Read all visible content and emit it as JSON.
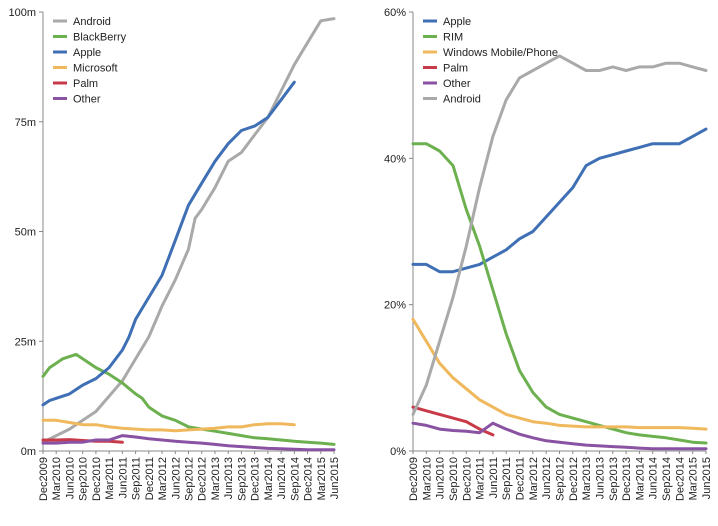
{
  "chart_data": [
    {
      "type": "line",
      "ylim": [
        0,
        100
      ],
      "yticks": [
        "0m",
        "25m",
        "50m",
        "75m",
        "100m"
      ],
      "ytick_values": [
        0,
        25,
        50,
        75,
        100
      ],
      "x_tick_labels": [
        "Dec2009",
        "Mar2010",
        "Jun2010",
        "Sep2010",
        "Dec2010",
        "Mar2011",
        "Jun2011",
        "Sep2011",
        "Dec2011",
        "Mar2012",
        "Jun2012",
        "Sep2012",
        "Dec2012",
        "Mar2013",
        "Jun2013",
        "Sep2013",
        "Dec2013",
        "Mar2014",
        "Jun2014",
        "Sep2014",
        "Dec2014",
        "Mar2015",
        "Jun2015"
      ],
      "legend_position": "top-left",
      "series": [
        {
          "name": "Android",
          "color": "#a9a9a9",
          "points": [
            [
              0,
              2
            ],
            [
              2,
              5
            ],
            [
              4,
              9
            ],
            [
              6,
              16
            ],
            [
              8,
              26
            ],
            [
              9,
              33
            ],
            [
              10,
              39
            ],
            [
              11,
              46
            ],
            [
              11.5,
              53
            ],
            [
              12,
              55
            ],
            [
              13,
              60
            ],
            [
              14,
              66
            ],
            [
              15,
              68
            ],
            [
              16,
              72
            ],
            [
              17,
              76
            ],
            [
              18,
              82
            ],
            [
              19,
              88
            ],
            [
              20,
              93
            ],
            [
              21,
              98
            ],
            [
              22,
              98.5
            ]
          ]
        },
        {
          "name": "BlackBerry",
          "color": "#6cb04f",
          "points": [
            [
              0,
              17
            ],
            [
              0.5,
              19
            ],
            [
              1,
              20
            ],
            [
              1.5,
              21
            ],
            [
              2,
              21.5
            ],
            [
              2.5,
              22
            ],
            [
              3,
              21
            ],
            [
              4,
              19
            ],
            [
              5,
              17.5
            ],
            [
              6,
              15.5
            ],
            [
              7,
              13
            ],
            [
              7.5,
              12
            ],
            [
              8,
              10
            ],
            [
              9,
              8
            ],
            [
              10,
              7
            ],
            [
              11,
              5.5
            ],
            [
              12,
              5
            ],
            [
              13,
              4.5
            ],
            [
              14,
              4
            ],
            [
              15,
              3.5
            ],
            [
              16,
              3
            ],
            [
              17,
              2.8
            ],
            [
              18,
              2.5
            ],
            [
              19,
              2.2
            ],
            [
              20,
              2
            ],
            [
              21,
              1.8
            ],
            [
              22,
              1.5
            ]
          ]
        },
        {
          "name": "Apple",
          "color": "#3f6fb4",
          "points": [
            [
              0,
              10.5
            ],
            [
              0.5,
              11.5
            ],
            [
              1,
              12
            ],
            [
              2,
              13
            ],
            [
              3,
              15
            ],
            [
              4,
              16.5
            ],
            [
              5,
              19
            ],
            [
              6,
              23
            ],
            [
              6.5,
              26
            ],
            [
              7,
              30
            ],
            [
              8,
              35
            ],
            [
              9,
              40
            ],
            [
              10,
              48
            ],
            [
              10.5,
              52
            ],
            [
              11,
              56
            ],
            [
              12,
              61
            ],
            [
              13,
              66
            ],
            [
              14,
              70
            ],
            [
              15,
              73
            ],
            [
              16,
              74
            ],
            [
              17,
              76
            ],
            [
              18,
              80
            ],
            [
              19,
              84
            ]
          ]
        },
        {
          "name": "Microsoft",
          "color": "#f0b85c",
          "points": [
            [
              0,
              7
            ],
            [
              1,
              7
            ],
            [
              2,
              6.5
            ],
            [
              3,
              6
            ],
            [
              4,
              6
            ],
            [
              5,
              5.5
            ],
            [
              6,
              5.2
            ],
            [
              7,
              5
            ],
            [
              8,
              4.8
            ],
            [
              9,
              4.8
            ],
            [
              10,
              4.6
            ],
            [
              11,
              4.8
            ],
            [
              12,
              5
            ],
            [
              13,
              5.2
            ],
            [
              14,
              5.5
            ],
            [
              15,
              5.5
            ],
            [
              16,
              6
            ],
            [
              17,
              6.2
            ],
            [
              18,
              6.2
            ],
            [
              19,
              6
            ]
          ]
        },
        {
          "name": "Palm",
          "color": "#c93a48",
          "points": [
            [
              0,
              2.5
            ],
            [
              1,
              2.5
            ],
            [
              2,
              2.6
            ],
            [
              3,
              2.4
            ],
            [
              4,
              2.2
            ],
            [
              5,
              2.2
            ],
            [
              6,
              2
            ]
          ]
        },
        {
          "name": "Other",
          "color": "#8a52a3",
          "points": [
            [
              0,
              1.8
            ],
            [
              1,
              1.8
            ],
            [
              2,
              2
            ],
            [
              3,
              2
            ],
            [
              4,
              2.5
            ],
            [
              5,
              2.5
            ],
            [
              6,
              3.5
            ],
            [
              7,
              3.2
            ],
            [
              8,
              2.8
            ],
            [
              9,
              2.5
            ],
            [
              10,
              2.2
            ],
            [
              11,
              2
            ],
            [
              12,
              1.8
            ],
            [
              13,
              1.5
            ],
            [
              14,
              1.2
            ],
            [
              15,
              1
            ],
            [
              16,
              0.8
            ],
            [
              17,
              0.6
            ],
            [
              18,
              0.5
            ],
            [
              19,
              0.4
            ],
            [
              20,
              0.3
            ],
            [
              21,
              0.3
            ],
            [
              22,
              0.3
            ]
          ]
        }
      ]
    },
    {
      "type": "line",
      "ylim": [
        0,
        60
      ],
      "yticks": [
        "0%",
        "20%",
        "40%",
        "60%"
      ],
      "ytick_values": [
        0,
        20,
        40,
        60
      ],
      "x_tick_labels": [
        "Dec2009",
        "Mar2010",
        "Jun2010",
        "Sep2010",
        "Dec2010",
        "Mar2011",
        "Jun2011",
        "Sep2011",
        "Dec2011",
        "Mar2012",
        "Jun2012",
        "Sep2012",
        "Dec2012",
        "Mar2013",
        "Jun2013",
        "Sep2013",
        "Dec2013",
        "Mar2014",
        "Jun2014",
        "Sep2014",
        "Dec2014",
        "Mar2015",
        "Jun2015"
      ],
      "legend_position": "top-left",
      "series": [
        {
          "name": "Apple",
          "color": "#3f6fb4",
          "points": [
            [
              0,
              25.5
            ],
            [
              1,
              25.5
            ],
            [
              2,
              24.5
            ],
            [
              3,
              24.5
            ],
            [
              4,
              25
            ],
            [
              5,
              25.5
            ],
            [
              6,
              26.5
            ],
            [
              7,
              27.5
            ],
            [
              8,
              29
            ],
            [
              9,
              30
            ],
            [
              10,
              32
            ],
            [
              11,
              34
            ],
            [
              12,
              36
            ],
            [
              13,
              39
            ],
            [
              14,
              40
            ],
            [
              15,
              40.5
            ],
            [
              16,
              41
            ],
            [
              17,
              41.5
            ],
            [
              18,
              42
            ],
            [
              19,
              42
            ],
            [
              20,
              42
            ],
            [
              21,
              43
            ],
            [
              22,
              44
            ]
          ]
        },
        {
          "name": "RIM",
          "color": "#6cb04f",
          "points": [
            [
              0,
              42
            ],
            [
              1,
              42
            ],
            [
              2,
              41
            ],
            [
              3,
              39
            ],
            [
              4,
              33
            ],
            [
              5,
              28
            ],
            [
              6,
              22
            ],
            [
              7,
              16
            ],
            [
              8,
              11
            ],
            [
              9,
              8
            ],
            [
              10,
              6
            ],
            [
              11,
              5
            ],
            [
              12,
              4.5
            ],
            [
              13,
              4
            ],
            [
              14,
              3.5
            ],
            [
              15,
              3
            ],
            [
              16,
              2.5
            ],
            [
              17,
              2.2
            ],
            [
              18,
              2
            ],
            [
              19,
              1.8
            ],
            [
              20,
              1.5
            ],
            [
              21,
              1.2
            ],
            [
              22,
              1.1
            ]
          ]
        },
        {
          "name": "Windows Mobile/Phone",
          "color": "#f0b85c",
          "points": [
            [
              0,
              18
            ],
            [
              1,
              15
            ],
            [
              2,
              12
            ],
            [
              3,
              10
            ],
            [
              4,
              8.5
            ],
            [
              5,
              7
            ],
            [
              6,
              6
            ],
            [
              7,
              5
            ],
            [
              8,
              4.5
            ],
            [
              9,
              4
            ],
            [
              10,
              3.8
            ],
            [
              11,
              3.5
            ],
            [
              12,
              3.4
            ],
            [
              13,
              3.3
            ],
            [
              14,
              3.3
            ],
            [
              15,
              3.3
            ],
            [
              16,
              3.3
            ],
            [
              17,
              3.2
            ],
            [
              18,
              3.2
            ],
            [
              19,
              3.2
            ],
            [
              20,
              3.2
            ],
            [
              21,
              3.1
            ],
            [
              22,
              3
            ]
          ]
        },
        {
          "name": "Palm",
          "color": "#c93a48",
          "points": [
            [
              0,
              6
            ],
            [
              1,
              5.5
            ],
            [
              2,
              5
            ],
            [
              3,
              4.5
            ],
            [
              4,
              4
            ],
            [
              5,
              3
            ],
            [
              6,
              2.2
            ]
          ]
        },
        {
          "name": "Other",
          "color": "#8a52a3",
          "points": [
            [
              0,
              3.8
            ],
            [
              1,
              3.5
            ],
            [
              2,
              3
            ],
            [
              3,
              2.8
            ],
            [
              4,
              2.7
            ],
            [
              5,
              2.5
            ],
            [
              6,
              3.8
            ],
            [
              7,
              3
            ],
            [
              8,
              2.3
            ],
            [
              9,
              1.8
            ],
            [
              10,
              1.4
            ],
            [
              11,
              1.2
            ],
            [
              12,
              1
            ],
            [
              13,
              0.8
            ],
            [
              14,
              0.7
            ],
            [
              15,
              0.6
            ],
            [
              16,
              0.5
            ],
            [
              17,
              0.4
            ],
            [
              18,
              0.3
            ],
            [
              19,
              0.3
            ],
            [
              20,
              0.3
            ],
            [
              21,
              0.3
            ],
            [
              22,
              0.3
            ]
          ]
        },
        {
          "name": "Android",
          "color": "#a9a9a9",
          "points": [
            [
              0,
              5
            ],
            [
              1,
              9
            ],
            [
              2,
              15
            ],
            [
              3,
              21
            ],
            [
              4,
              28
            ],
            [
              5,
              36
            ],
            [
              6,
              43
            ],
            [
              7,
              48
            ],
            [
              8,
              51
            ],
            [
              9,
              52
            ],
            [
              10,
              53
            ],
            [
              11,
              54
            ],
            [
              12,
              53
            ],
            [
              13,
              52
            ],
            [
              14,
              52
            ],
            [
              15,
              52.5
            ],
            [
              16,
              52
            ],
            [
              17,
              52.5
            ],
            [
              18,
              52.5
            ],
            [
              19,
              53
            ],
            [
              20,
              53
            ],
            [
              21,
              52.5
            ],
            [
              22,
              52
            ]
          ]
        }
      ]
    }
  ]
}
